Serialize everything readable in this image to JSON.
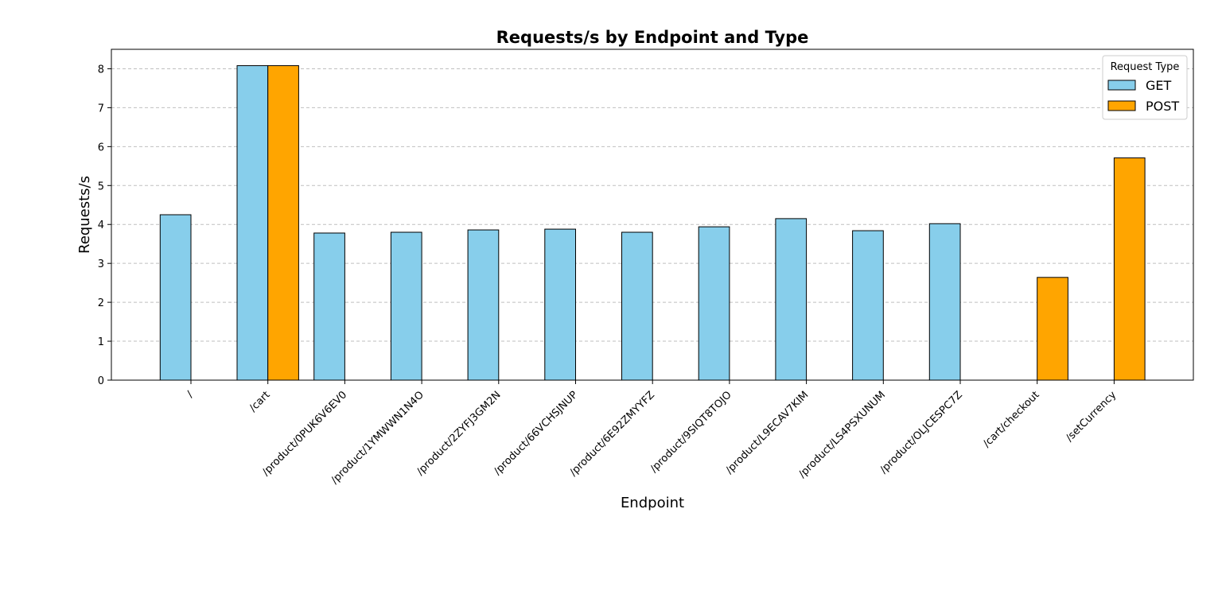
{
  "chart_data": {
    "type": "bar",
    "title": "Requests/s by Endpoint and Type",
    "xlabel": "Endpoint",
    "ylabel": "Requests/s",
    "ylim": [
      0,
      8.5
    ],
    "yticks": [
      0,
      1,
      2,
      3,
      4,
      5,
      6,
      7,
      8
    ],
    "grid": true,
    "legend_title": "Request Type",
    "legend_position": "top-right",
    "categories": [
      "/",
      "/cart",
      "/product/0PUK6V6EV0",
      "/product/1YMWWN1N4O",
      "/product/2ZYFJ3GM2N",
      "/product/66VCHSJNUP",
      "/product/6E92ZMYYFZ",
      "/product/9SIQT8TOJO",
      "/product/L9ECAV7KIM",
      "/product/LS4PSXUNUM",
      "/product/OLJCESPC7Z",
      "/cart/checkout",
      "/setCurrency"
    ],
    "series": [
      {
        "name": "GET",
        "color": "#87ceeb",
        "values": [
          4.25,
          8.08,
          3.78,
          3.8,
          3.86,
          3.88,
          3.8,
          3.94,
          4.15,
          3.84,
          4.02,
          0,
          0
        ]
      },
      {
        "name": "POST",
        "color": "#ffa500",
        "values": [
          0,
          8.08,
          0,
          0,
          0,
          0,
          0,
          0,
          0,
          0,
          0,
          2.64,
          5.71
        ]
      }
    ]
  }
}
